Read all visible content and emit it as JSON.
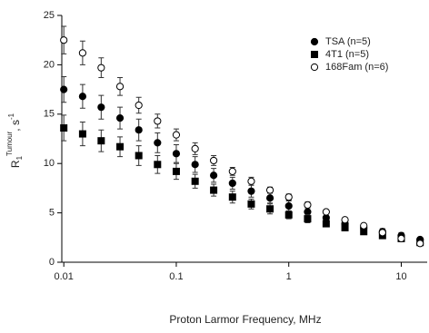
{
  "chart_data": {
    "type": "scatter",
    "xlabel": "Proton Larmor Frequency, MHz",
    "ylabel": {
      "base": "R",
      "sub": "1",
      "sup": "Tumour",
      "unit": ", s",
      "unit_sup": "-1"
    },
    "x": [
      0.01,
      0.0147,
      0.0215,
      0.0316,
      0.0464,
      0.0681,
      0.1,
      0.147,
      0.215,
      0.316,
      0.464,
      0.681,
      1,
      1.47,
      2.15,
      3.16,
      4.64,
      6.81,
      10,
      14.7
    ],
    "series": [
      {
        "name": "TSA (n=5)",
        "color": "#000000",
        "marker": "filled-circle",
        "values": [
          17.5,
          16.8,
          15.7,
          14.6,
          13.4,
          12.1,
          11.0,
          9.9,
          8.8,
          8.0,
          7.2,
          6.5,
          5.7,
          5.1,
          4.5,
          3.9,
          3.5,
          3.1,
          2.7,
          2.3
        ],
        "errors": [
          1.3,
          1.2,
          1.2,
          1.1,
          1.1,
          1.0,
          0.9,
          0.8,
          0.7,
          0.6,
          0.6,
          0.5,
          0.5,
          0.4,
          0.4,
          0.3,
          0.3,
          0.3,
          0.3,
          0.2
        ]
      },
      {
        "name": "4T1 (n=5)",
        "color": "#000000",
        "marker": "filled-square",
        "values": [
          13.6,
          13.0,
          12.3,
          11.7,
          10.8,
          9.9,
          9.2,
          8.2,
          7.3,
          6.6,
          5.9,
          5.4,
          4.8,
          4.4,
          3.9,
          3.5,
          3.1,
          2.7,
          2.4,
          2.0
        ],
        "errors": [
          1.3,
          1.2,
          1.1,
          1.0,
          1.0,
          0.9,
          0.8,
          0.7,
          0.6,
          0.6,
          0.5,
          0.5,
          0.4,
          0.4,
          0.3,
          0.3,
          0.3,
          0.2,
          0.2,
          0.2
        ]
      },
      {
        "name": "168Fam (n=6)",
        "color": "#000000",
        "marker": "open-circle",
        "values": [
          22.5,
          21.2,
          19.7,
          17.8,
          15.9,
          14.3,
          12.9,
          11.5,
          10.3,
          9.2,
          8.2,
          7.3,
          6.6,
          5.8,
          5.1,
          4.3,
          3.7,
          3.0,
          2.4,
          1.9
        ],
        "errors": [
          1.4,
          1.2,
          1.0,
          0.9,
          0.8,
          0.7,
          0.6,
          0.6,
          0.5,
          0.4,
          0.4,
          0.3,
          0.3,
          0.3,
          0.2,
          0.2,
          0.2,
          0.2,
          0.2,
          0.2
        ]
      }
    ],
    "xscale": "log",
    "xlim": [
      0.0096,
      17
    ],
    "xticks": [
      0.01,
      0.1,
      1,
      10
    ],
    "ylim": [
      0,
      25
    ],
    "yticks": [
      0,
      5,
      10,
      15,
      20,
      25
    ],
    "legend": "upper right",
    "grid": false
  }
}
